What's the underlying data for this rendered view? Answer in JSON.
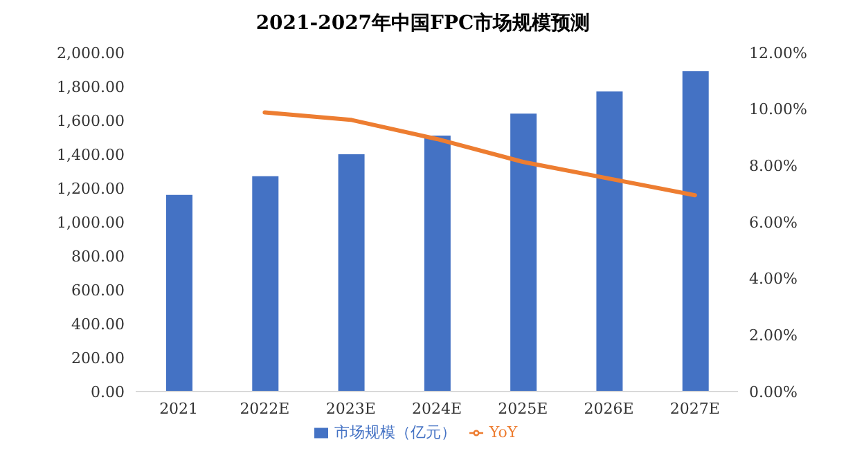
{
  "chart_data": {
    "type": "bar",
    "title": "2021-2027年中国FPC市场规模预测",
    "categories": [
      "2021",
      "2022E",
      "2023E",
      "2024E",
      "2025E",
      "2026E",
      "2027E"
    ],
    "series": [
      {
        "name": "市场规模（亿元）",
        "color": "#4472c4",
        "values": [
          1160,
          1270,
          1400,
          1510,
          1640,
          1770,
          1890
        ]
      },
      {
        "name": "YoY",
        "type": "line",
        "axis": "y2",
        "color": "#ed7d31",
        "values": [
          null,
          9.88,
          9.62,
          8.94,
          8.13,
          7.54,
          6.95
        ]
      }
    ],
    "ylim": [
      0,
      2000
    ],
    "yticks": [
      {
        "value": 0,
        "label": "0.00"
      },
      {
        "value": 200,
        "label": "200.00"
      },
      {
        "value": 400,
        "label": "400.00"
      },
      {
        "value": 600,
        "label": "600.00"
      },
      {
        "value": 800,
        "label": "800.00"
      },
      {
        "value": 1000,
        "label": "1,000.00"
      },
      {
        "value": 1200,
        "label": "1,200.00"
      },
      {
        "value": 1400,
        "label": "1,400.00"
      },
      {
        "value": 1600,
        "label": "1,600.00"
      },
      {
        "value": 1800,
        "label": "1,800.00"
      },
      {
        "value": 2000,
        "label": "2,000.00"
      }
    ],
    "y2lim": [
      0,
      12
    ],
    "y2ticks": [
      {
        "value": 0,
        "label": "0.00%"
      },
      {
        "value": 2,
        "label": "2.00%"
      },
      {
        "value": 4,
        "label": "4.00%"
      },
      {
        "value": 6,
        "label": "6.00%"
      },
      {
        "value": 8,
        "label": "8.00%"
      },
      {
        "value": 10,
        "label": "10.00%"
      },
      {
        "value": 12,
        "label": "12.00%"
      }
    ],
    "grid": false,
    "legend": "bottom",
    "marker": "none",
    "line_style": "solid"
  }
}
